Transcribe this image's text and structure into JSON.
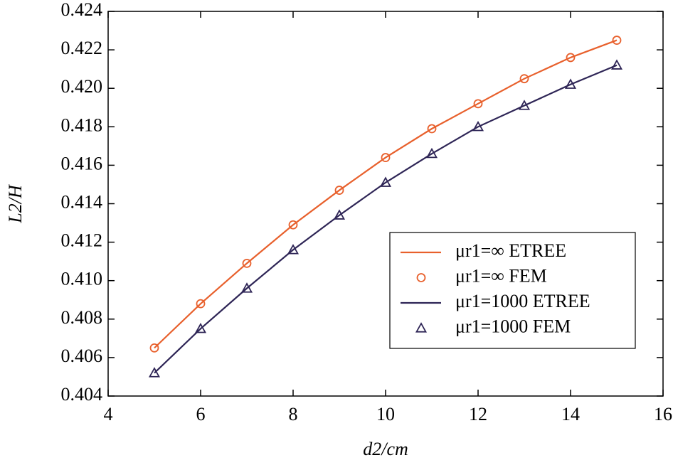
{
  "chart_data": {
    "type": "line",
    "xlabel": "d2/cm",
    "ylabel": "L2/H",
    "x": [
      5,
      6,
      7,
      8,
      9,
      10,
      11,
      12,
      13,
      14,
      15
    ],
    "series": [
      {
        "name": "μr1=∞ ETREE",
        "color": "#e8602c",
        "style": "line",
        "values": [
          0.4065,
          0.4088,
          0.4109,
          0.4129,
          0.4147,
          0.4164,
          0.4179,
          0.4192,
          0.4205,
          0.4216,
          0.4225
        ]
      },
      {
        "name": "μr1=∞ FEM",
        "color": "#e8602c",
        "style": "circle",
        "values": [
          0.4065,
          0.4088,
          0.4109,
          0.4129,
          0.4147,
          0.4164,
          0.4179,
          0.4192,
          0.4205,
          0.4216,
          0.4225
        ]
      },
      {
        "name": "μr1=1000 ETREE",
        "color": "#2e2556",
        "style": "line",
        "values": [
          0.4052,
          0.4075,
          0.4096,
          0.4116,
          0.4134,
          0.4151,
          0.4166,
          0.418,
          0.4191,
          0.4202,
          0.4212
        ]
      },
      {
        "name": "μr1=1000 FEM",
        "color": "#2e2556",
        "style": "triangle",
        "values": [
          0.4052,
          0.4075,
          0.4096,
          0.4116,
          0.4134,
          0.4151,
          0.4166,
          0.418,
          0.4191,
          0.4202,
          0.4212
        ]
      }
    ],
    "xlim": [
      4,
      16
    ],
    "xticks": [
      4,
      6,
      8,
      10,
      12,
      14,
      16
    ],
    "ylim": [
      0.404,
      0.424
    ],
    "yticks": [
      0.404,
      0.406,
      0.408,
      {
        "value": 0.41,
        "label": "0.410"
      },
      0.412,
      0.414,
      0.416,
      0.418,
      {
        "value": 0.42,
        "label": "0.420"
      },
      0.422,
      0.424
    ],
    "legend": "lower right"
  }
}
